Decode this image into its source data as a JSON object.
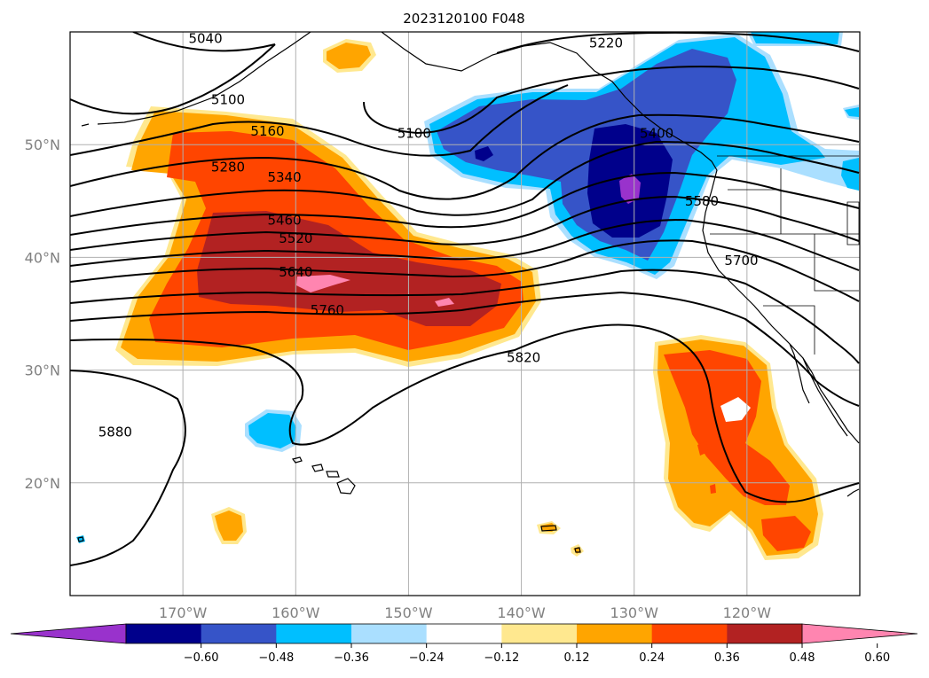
{
  "title": "2023120100 F048",
  "map": {
    "projection": "cylindrical",
    "lon_range": [
      -180,
      -110
    ],
    "lat_range": [
      10,
      60
    ],
    "grid": true,
    "lat_labels": [
      {
        "lat": 50,
        "label": "50°N"
      },
      {
        "lat": 40,
        "label": "40°N"
      },
      {
        "lat": 30,
        "label": "30°N"
      },
      {
        "lat": 20,
        "label": "20°N"
      }
    ],
    "lon_labels": [
      {
        "lon": -170,
        "label": "170°W"
      },
      {
        "lon": -160,
        "label": "160°W"
      },
      {
        "lon": -150,
        "label": "150°W"
      },
      {
        "lon": -140,
        "label": "140°W"
      },
      {
        "lon": -130,
        "label": "130°W"
      },
      {
        "lon": -120,
        "label": "120°W"
      }
    ]
  },
  "contours": [
    {
      "value": "5040",
      "lon": -168,
      "lat": 59.4
    },
    {
      "value": "5100",
      "lon": -166,
      "lat": 54.0
    },
    {
      "value": "5100",
      "lon": -149.5,
      "lat": 51.0
    },
    {
      "value": "5160",
      "lon": -162.5,
      "lat": 51.2
    },
    {
      "value": "5220",
      "lon": -132.5,
      "lat": 59.0
    },
    {
      "value": "5280",
      "lon": -166,
      "lat": 48.0
    },
    {
      "value": "5340",
      "lon": -161,
      "lat": 47.1
    },
    {
      "value": "5400",
      "lon": -128,
      "lat": 51.0
    },
    {
      "value": "5460",
      "lon": -161,
      "lat": 43.3
    },
    {
      "value": "5520",
      "lon": -160,
      "lat": 41.7
    },
    {
      "value": "5580",
      "lon": -124,
      "lat": 45.0
    },
    {
      "value": "5640",
      "lon": -160,
      "lat": 38.7
    },
    {
      "value": "5700",
      "lon": -120.5,
      "lat": 39.7
    },
    {
      "value": "5760",
      "lon": -157.2,
      "lat": 35.3
    },
    {
      "value": "5820",
      "lon": -139.8,
      "lat": 31.1
    },
    {
      "value": "5880",
      "lon": -176,
      "lat": 24.5
    }
  ],
  "colorbar": {
    "ticks": [
      "−0.60",
      "−0.48",
      "−0.36",
      "−0.24",
      "−0.12",
      "0.12",
      "0.24",
      "0.36",
      "0.48",
      "0.60"
    ],
    "colors": [
      "#9932cc",
      "#00008b",
      "#3654c8",
      "#00bfff",
      "#aadfff",
      "#ffffff",
      "#ffe88f",
      "#ffa500",
      "#ff4500",
      "#b22222",
      "#ff85b0"
    ]
  }
}
